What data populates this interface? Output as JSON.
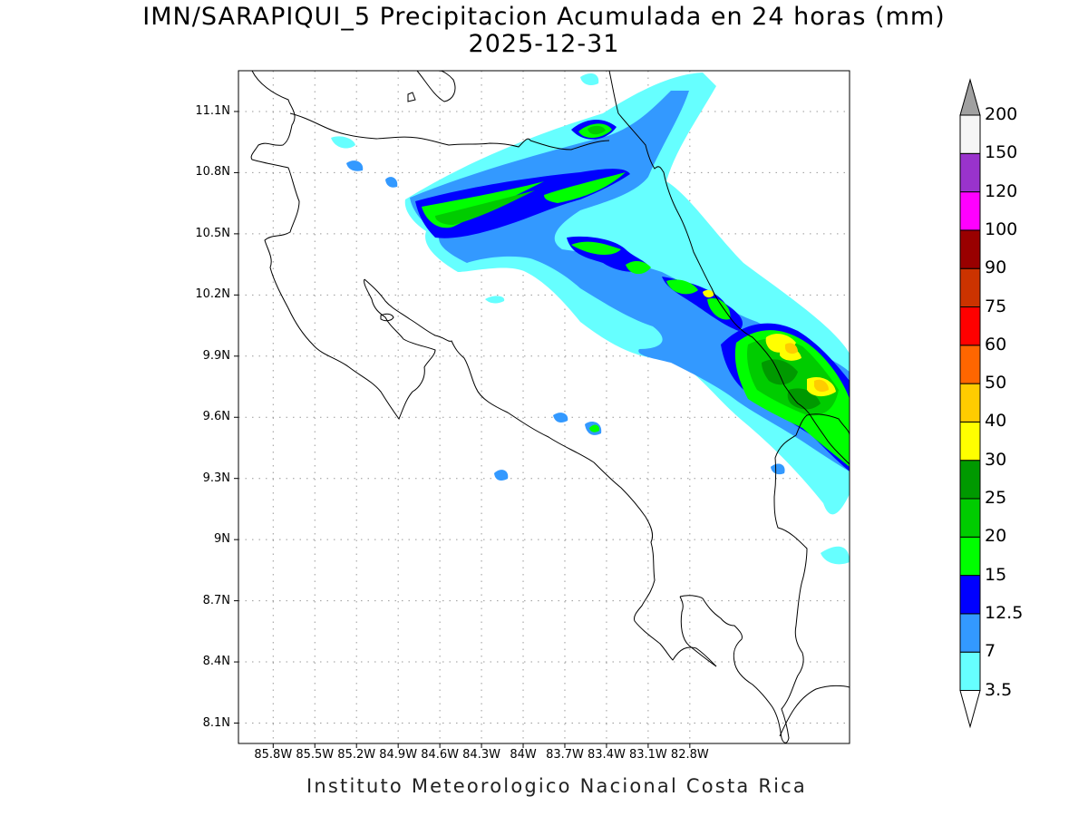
{
  "title": {
    "line1": "IMN/SARAPIQUI_5 Precipitacion Acumulada en 24 horas (mm)",
    "line2": "2025-12-31"
  },
  "footer": "Instituto Meteorologico Nacional Costa Rica",
  "map": {
    "lon_range": [
      -86.05,
      -81.65
    ],
    "lat_range": [
      8.0,
      11.3
    ],
    "lat_ticks": [
      {
        "value": 11.1,
        "label": "11.1N"
      },
      {
        "value": 10.8,
        "label": "10.8N"
      },
      {
        "value": 10.5,
        "label": "10.5N"
      },
      {
        "value": 10.2,
        "label": "10.2N"
      },
      {
        "value": 9.9,
        "label": "9.9N"
      },
      {
        "value": 9.6,
        "label": "9.6N"
      },
      {
        "value": 9.3,
        "label": "9.3N"
      },
      {
        "value": 9.0,
        "label": "9N"
      },
      {
        "value": 8.7,
        "label": "8.7N"
      },
      {
        "value": 8.4,
        "label": "8.4N"
      },
      {
        "value": 8.1,
        "label": "8.1N"
      }
    ],
    "lon_ticks": [
      {
        "value": -85.8,
        "label": "85.8W"
      },
      {
        "value": -85.5,
        "label": "85.5W"
      },
      {
        "value": -85.2,
        "label": "85.2W"
      },
      {
        "value": -84.9,
        "label": "84.9W"
      },
      {
        "value": -84.6,
        "label": "84.6W"
      },
      {
        "value": -84.3,
        "label": "84.3W"
      },
      {
        "value": -84.0,
        "label": "84W"
      },
      {
        "value": -83.7,
        "label": "83.7W"
      },
      {
        "value": -83.4,
        "label": "83.4W"
      },
      {
        "value": -83.1,
        "label": "83.1W"
      },
      {
        "value": -82.8,
        "label": "82.8W"
      }
    ],
    "grid": "dotted"
  },
  "colorbar": {
    "labels": [
      "3.5",
      "7",
      "12.5",
      "15",
      "20",
      "25",
      "30",
      "40",
      "50",
      "60",
      "75",
      "90",
      "100",
      "120",
      "150",
      "200"
    ],
    "colors": [
      "#66ffff",
      "#3399ff",
      "#0000ff",
      "#00ff00",
      "#00cc00",
      "#009900",
      "#ffff00",
      "#ffcc00",
      "#ff6600",
      "#ff0000",
      "#cc3300",
      "#990000",
      "#ff00ff",
      "#9933cc",
      "#f5f5f5"
    ],
    "over_color": "#a0a0a0",
    "under_color": "#ffffff"
  },
  "precip_colors": {
    "light": "#66ffff",
    "moderate": "#3399ff",
    "heavy": "#0000ff",
    "green_light": "#00ff00",
    "green_mid": "#00cc00",
    "green_dark": "#009900",
    "yellow": "#ffff00",
    "orange_yellow": "#ffcc00"
  }
}
